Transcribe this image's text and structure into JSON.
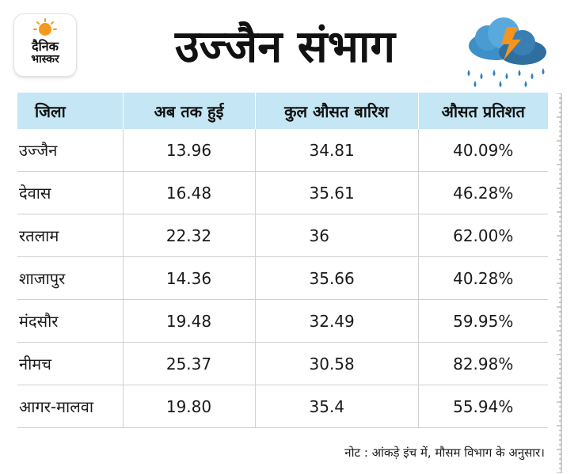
{
  "logo": {
    "line1": "दैनिक",
    "line2": "भास्कर"
  },
  "header": {
    "title": "उज्जैन संभाग"
  },
  "icons": {
    "logo": "sun-logo-icon",
    "weather": "rain-cloud-lightning-icon"
  },
  "colors": {
    "header_bg": "#c5e6f4",
    "logo_sun": "#f39a1d",
    "cloud": "#3d8fc7",
    "lightning": "#f7941d",
    "rain": "#2f7fc0"
  },
  "chart_data": {
    "type": "table",
    "columns": [
      "जिला",
      "अब तक हुई",
      "कुल औसत बारिश",
      "औसत प्रतिशत"
    ],
    "rows": [
      [
        "उज्जैन",
        "13.96",
        "34.81",
        "40.09%"
      ],
      [
        "देवास",
        "16.48",
        "35.61",
        "46.28%"
      ],
      [
        "रतलाम",
        "22.32",
        "36",
        "62.00%"
      ],
      [
        "शाजापुर",
        "14.36",
        "35.66",
        "40.28%"
      ],
      [
        "मंदसौर",
        "19.48",
        "32.49",
        "59.95%"
      ],
      [
        "नीमच",
        "25.37",
        "30.58",
        "82.98%"
      ],
      [
        "आगर-मालवा",
        "19.80",
        "35.4",
        "55.94%"
      ]
    ]
  },
  "footer": {
    "note": "नोट : आंकड़े इंच में, मौसम विभाग के अनुसार।"
  }
}
